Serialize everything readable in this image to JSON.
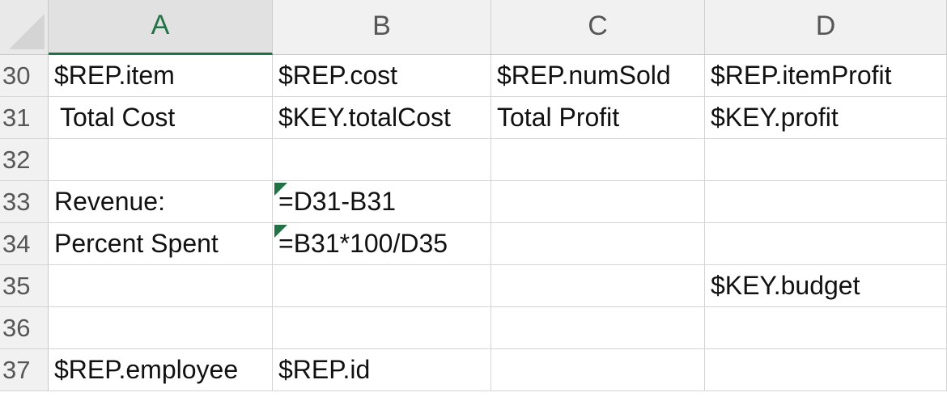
{
  "columns": [
    "A",
    "B",
    "C",
    "D"
  ],
  "accent_color": "#217346",
  "rows": [
    {
      "num": "30",
      "cells": [
        "$REP.item",
        "$REP.cost",
        "$REP.numSold",
        "$REP.itemProfit"
      ]
    },
    {
      "num": "31",
      "cells": [
        "Total Cost",
        "$KEY.totalCost",
        "Total Profit",
        "$KEY.profit"
      ]
    },
    {
      "num": "32",
      "cells": [
        "",
        "",
        "",
        ""
      ]
    },
    {
      "num": "33",
      "cells": [
        "Revenue:",
        "=D31-B31",
        "",
        ""
      ]
    },
    {
      "num": "34",
      "cells": [
        "Percent Spent",
        "=B31*100/D35",
        "",
        ""
      ]
    },
    {
      "num": "35",
      "cells": [
        "",
        "",
        "",
        "$KEY.budget"
      ]
    },
    {
      "num": "36",
      "cells": [
        "",
        "",
        "",
        ""
      ]
    },
    {
      "num": "37",
      "cells": [
        "$REP.employee",
        "$REP.id",
        "",
        ""
      ]
    }
  ]
}
